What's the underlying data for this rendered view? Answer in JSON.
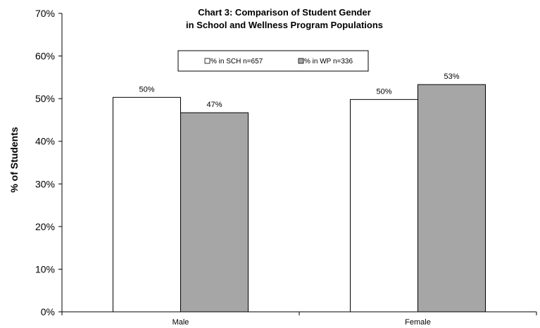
{
  "chart_data": {
    "type": "bar",
    "title": [
      "Chart 3: Comparison of Student Gender",
      "in School and Wellness Program Populations"
    ],
    "ylabel": "% of Students",
    "xlabel": "",
    "categories": [
      "Male",
      "Female"
    ],
    "ylim": [
      0,
      70
    ],
    "yticks": [
      "0%",
      "10%",
      "20%",
      "30%",
      "40%",
      "50%",
      "60%",
      "70%"
    ],
    "grid": false,
    "legend_position": "top-center",
    "series": [
      {
        "name": "% in SCH n=657",
        "values": [
          50.3,
          49.8
        ],
        "labels": [
          "50%",
          "50%"
        ],
        "color": "#ffffff"
      },
      {
        "name": "% in WP n=336",
        "values": [
          46.7,
          53.3
        ],
        "labels": [
          "47%",
          "53%"
        ],
        "color": "#a6a6a6"
      }
    ]
  }
}
